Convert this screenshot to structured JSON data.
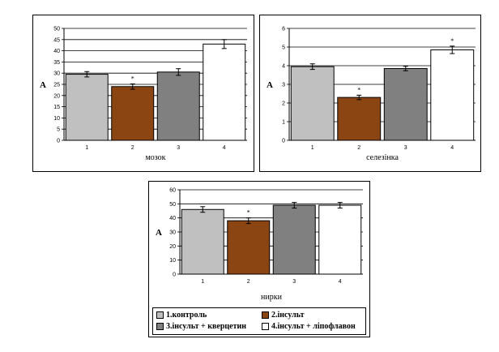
{
  "colors": {
    "series": [
      "#c0c0c0",
      "#8b4513",
      "#808080",
      "#ffffff"
    ]
  },
  "legend": {
    "items": [
      "1.контроль",
      "2.інсульт",
      "3.інсульт + кверцетин",
      "4.інсульт + ліпофлавон"
    ]
  },
  "chart_data": [
    {
      "type": "bar",
      "categories": [
        "1",
        "2",
        "3",
        "4"
      ],
      "values": [
        29.5,
        24,
        30.5,
        43
      ],
      "errors": [
        1.2,
        1.2,
        1.5,
        2.0
      ],
      "significance": [
        "",
        "*",
        "",
        ""
      ],
      "xlabel": "мозок",
      "ylabel": "A",
      "ylim": [
        0,
        50
      ],
      "yticks": [
        0,
        5,
        10,
        15,
        20,
        25,
        30,
        35,
        40,
        45,
        50
      ],
      "grid": true
    },
    {
      "type": "bar",
      "categories": [
        "1",
        "2",
        "3",
        "4"
      ],
      "values": [
        3.95,
        2.3,
        3.85,
        4.85
      ],
      "errors": [
        0.15,
        0.12,
        0.12,
        0.2
      ],
      "significance": [
        "",
        "*",
        "",
        "*"
      ],
      "xlabel": "селезінка",
      "ylabel": "A",
      "ylim": [
        0,
        6
      ],
      "yticks": [
        0,
        1,
        2,
        3,
        4,
        5,
        6
      ],
      "grid": true
    },
    {
      "type": "bar",
      "categories": [
        "1",
        "2",
        "3",
        "4"
      ],
      "values": [
        46,
        38,
        49,
        49
      ],
      "errors": [
        2,
        2,
        2,
        2
      ],
      "significance": [
        "",
        "*",
        "",
        ""
      ],
      "xlabel": "нирки",
      "ylabel": "A",
      "ylim": [
        0,
        60
      ],
      "yticks": [
        0,
        10,
        20,
        30,
        40,
        50,
        60
      ],
      "grid": true
    }
  ]
}
